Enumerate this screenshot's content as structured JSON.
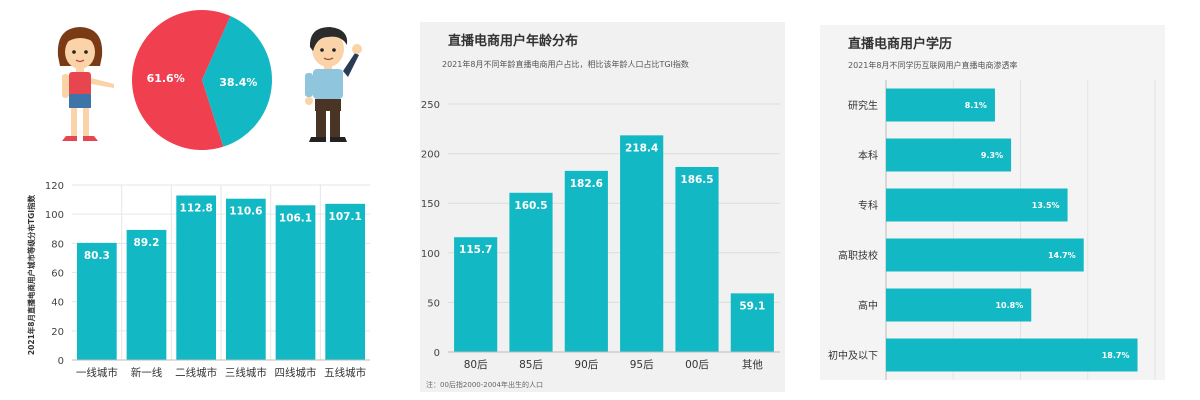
{
  "colors": {
    "bar": "#12b8c3",
    "pie_female": "#f0404f",
    "pie_male": "#12b8c3"
  },
  "gender_pie": {
    "chart_data": {
      "type": "pie",
      "slices": [
        {
          "label": "61.6%",
          "value": 61.6,
          "color": "#f0404f"
        },
        {
          "label": "38.4%",
          "value": 38.4,
          "color": "#12b8c3"
        }
      ]
    }
  },
  "city": {
    "chart_data": {
      "type": "bar",
      "ylabel": "2021年8月直播电商用户城市等级分布TGI指数",
      "categories": [
        "一线城市",
        "新一线",
        "二线城市",
        "三线城市",
        "四线城市",
        "五线城市"
      ],
      "values": [
        80.3,
        89.2,
        112.8,
        110.6,
        106.1,
        107.1
      ],
      "ylim": [
        0,
        120
      ],
      "yticks": [
        0,
        20,
        40,
        60,
        80,
        100,
        120
      ]
    }
  },
  "age": {
    "chart_data": {
      "type": "bar",
      "title": "直播电商用户年龄分布",
      "subtitle": "2021年8月不同年龄直播电商用户占比，相比该年龄人口占比TGI指数",
      "footnote": "注：00后指2000-2004年出生的人口",
      "categories": [
        "80后",
        "85后",
        "90后",
        "95后",
        "00后",
        "其他"
      ],
      "values": [
        115.7,
        160.5,
        182.6,
        218.4,
        186.5,
        59.1
      ],
      "ylim": [
        0,
        250
      ],
      "yticks": [
        0,
        50,
        100,
        150,
        200,
        250
      ]
    }
  },
  "education": {
    "chart_data": {
      "type": "bar",
      "orientation": "horizontal",
      "title": "直播电商用户学历",
      "subtitle": "2021年8月不同学历互联网用户直播电商渗透率",
      "categories": [
        "研究生",
        "本科",
        "专科",
        "高职技校",
        "高中",
        "初中及以下"
      ],
      "values": [
        8.1,
        9.3,
        13.5,
        14.7,
        10.8,
        18.7
      ],
      "labels": [
        "8.1%",
        "9.3%",
        "13.5%",
        "14.7%",
        "10.8%",
        "18.7%"
      ],
      "xlim": [
        0,
        20
      ]
    }
  }
}
